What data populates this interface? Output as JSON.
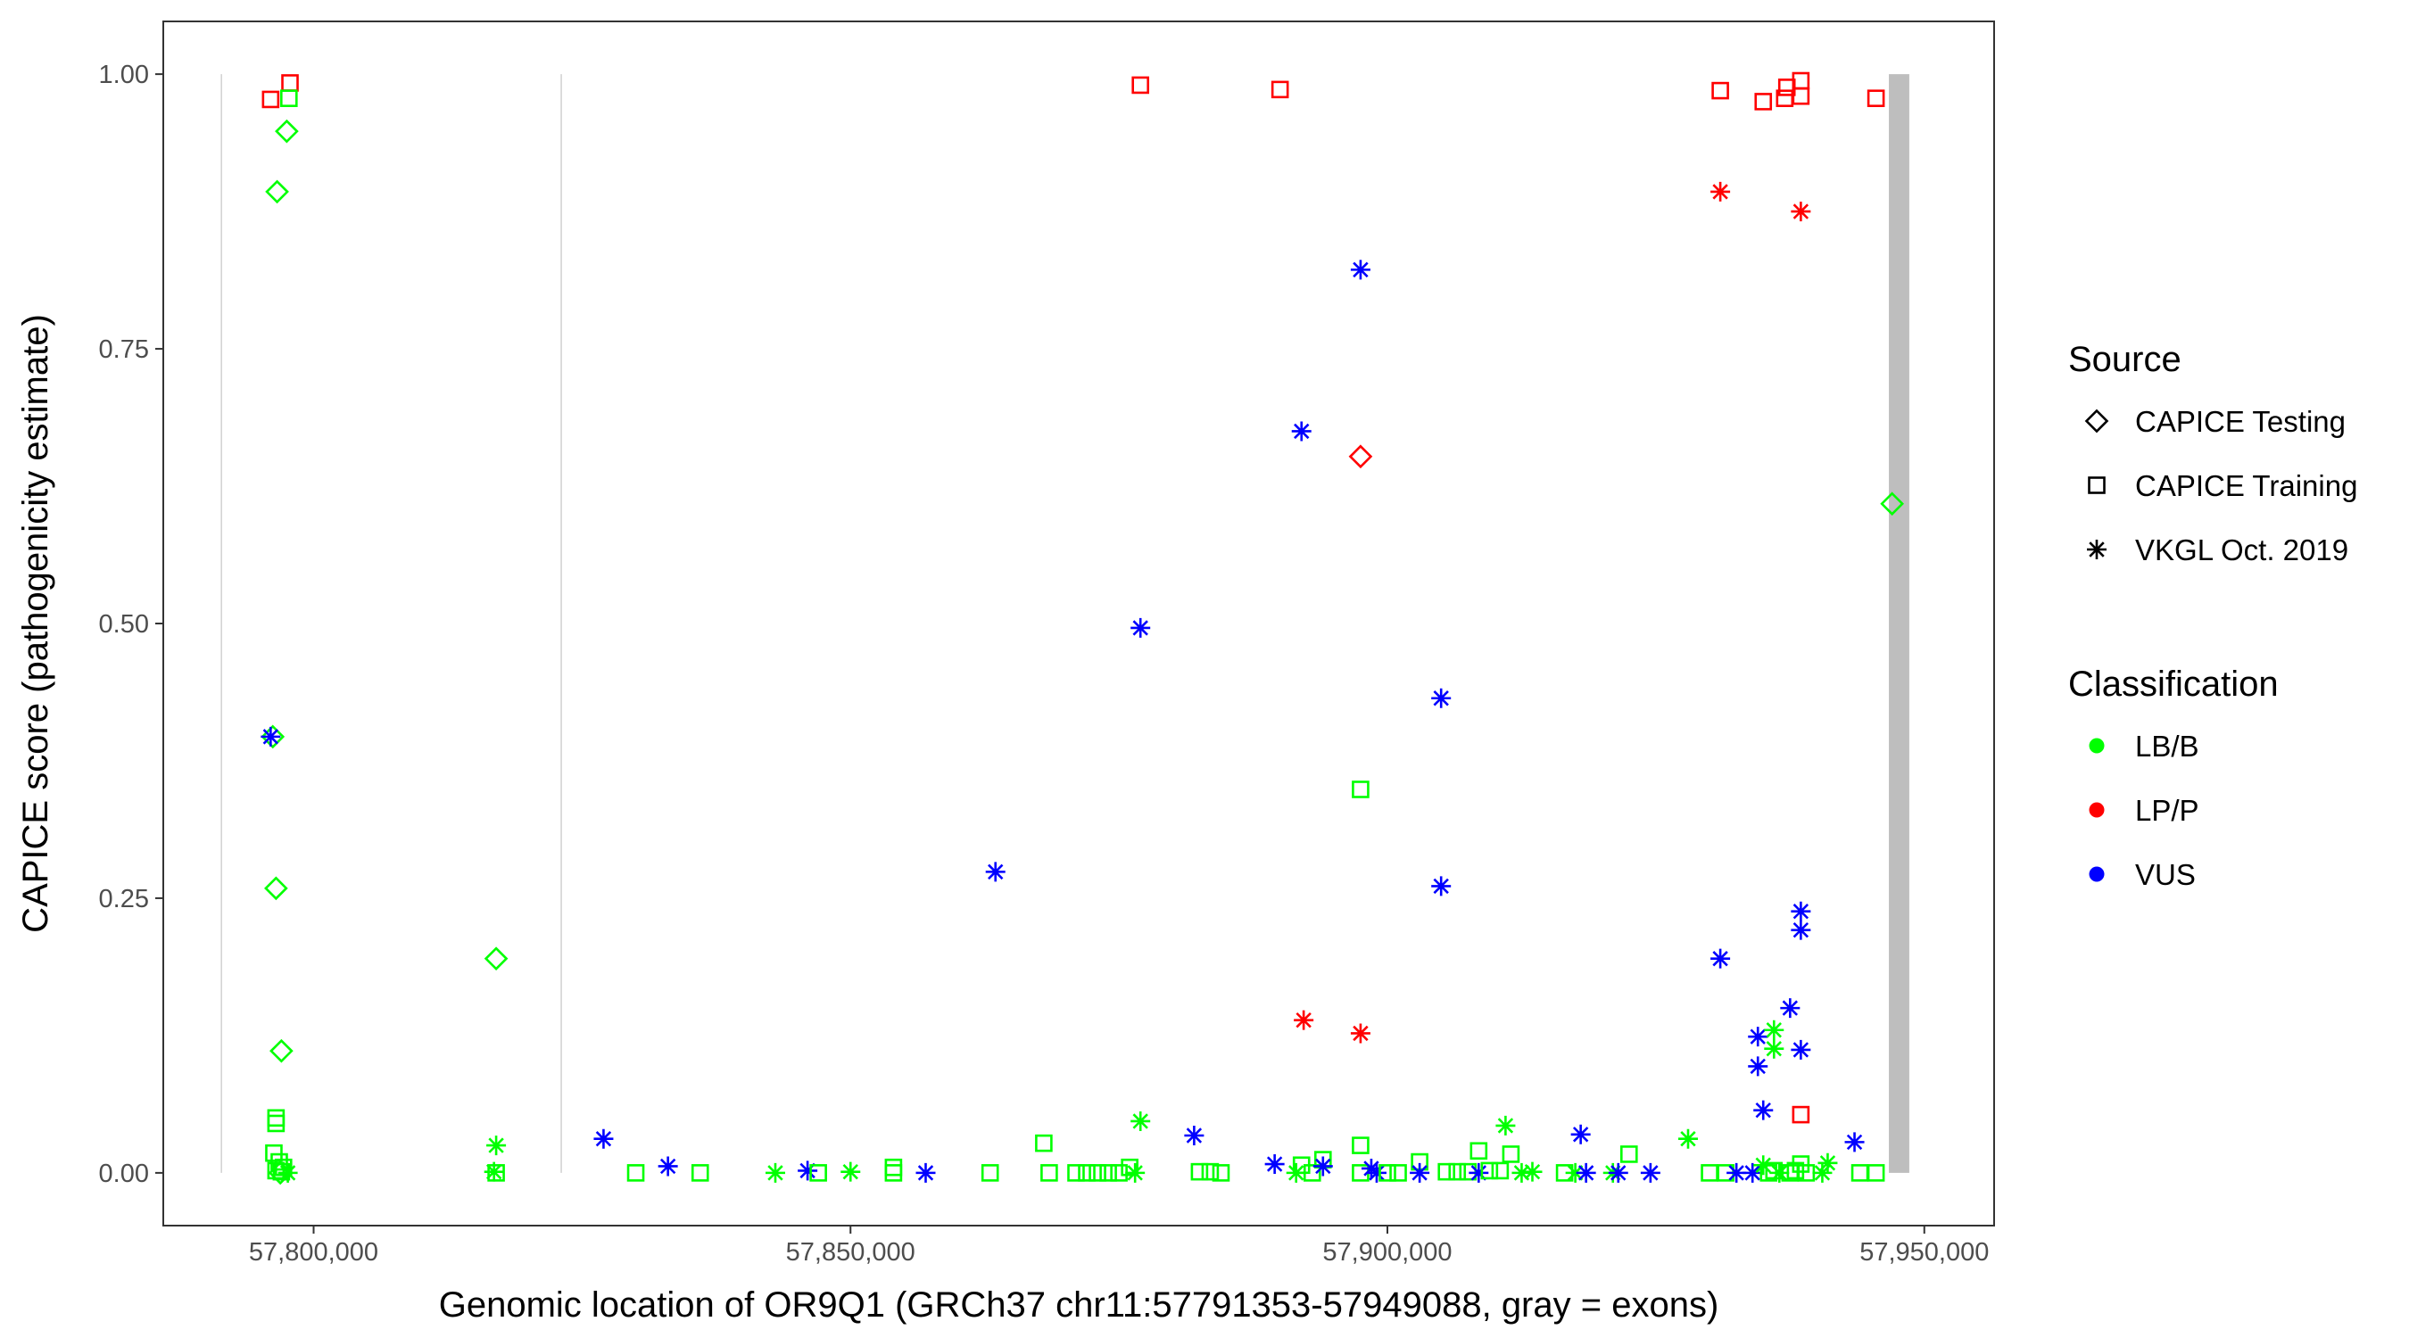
{
  "chart_data": {
    "type": "scatter",
    "title": "",
    "xlabel": "Genomic location of OR9Q1 (GRCh37 chr11:57791353-57949088, gray = exons)",
    "ylabel": "CAPICE score (pathogenicity estimate)",
    "xlim": [
      57786000,
      57956500
    ],
    "ylim": [
      -0.048,
      1.048
    ],
    "x_ticks": [
      57800000,
      57850000,
      57900000,
      57950000
    ],
    "x_tick_labels": [
      "57,800,000",
      "57,850,000",
      "57,900,000",
      "57,950,000"
    ],
    "y_ticks": [
      0,
      0.25,
      0.5,
      0.75,
      1
    ],
    "y_tick_labels": [
      "0.00",
      "0.25",
      "0.50",
      "0.75",
      "1.00"
    ],
    "grid": false,
    "legend_position": "right",
    "exon_regions": [
      [
        57791353,
        57791353
      ],
      [
        57823000,
        57823000
      ],
      [
        57946700,
        57948600
      ]
    ],
    "shape_legend": {
      "title": "Source",
      "entries": [
        {
          "key": "testing",
          "label": "CAPICE Testing",
          "shape": "diamond"
        },
        {
          "key": "training",
          "label": "CAPICE Training",
          "shape": "square"
        },
        {
          "key": "vkgl",
          "label": "VKGL Oct. 2019",
          "shape": "asterisk"
        }
      ]
    },
    "color_legend": {
      "title": "Classification",
      "entries": [
        {
          "key": "LB",
          "label": "LB/B",
          "color": "#00ff00"
        },
        {
          "key": "LP",
          "label": "LP/P",
          "color": "#ff0000"
        },
        {
          "key": "VUS",
          "label": "VUS",
          "color": "#0000ff"
        }
      ]
    },
    "points": [
      {
        "x": 57796000,
        "y": 0.977,
        "src": "training",
        "cls": "LP"
      },
      {
        "x": 57797800,
        "y": 0.992,
        "src": "training",
        "cls": "LP"
      },
      {
        "x": 57797700,
        "y": 0.978,
        "src": "training",
        "cls": "LB"
      },
      {
        "x": 57797500,
        "y": 0.948,
        "src": "testing",
        "cls": "LB"
      },
      {
        "x": 57796600,
        "y": 0.893,
        "src": "testing",
        "cls": "LB"
      },
      {
        "x": 57796200,
        "y": 0.397,
        "src": "testing",
        "cls": "LB"
      },
      {
        "x": 57796000,
        "y": 0.397,
        "src": "vkgl",
        "cls": "VUS"
      },
      {
        "x": 57796500,
        "y": 0.259,
        "src": "testing",
        "cls": "LB"
      },
      {
        "x": 57797000,
        "y": 0.111,
        "src": "testing",
        "cls": "LB"
      },
      {
        "x": 57796500,
        "y": 0.05,
        "src": "training",
        "cls": "LB"
      },
      {
        "x": 57796500,
        "y": 0.045,
        "src": "training",
        "cls": "LB"
      },
      {
        "x": 57796300,
        "y": 0.018,
        "src": "training",
        "cls": "LB"
      },
      {
        "x": 57796800,
        "y": 0.01,
        "src": "training",
        "cls": "LB"
      },
      {
        "x": 57797200,
        "y": 0.005,
        "src": "training",
        "cls": "LB"
      },
      {
        "x": 57796500,
        "y": 0.002,
        "src": "training",
        "cls": "LB"
      },
      {
        "x": 57797000,
        "y": 0.001,
        "src": "training",
        "cls": "LB"
      },
      {
        "x": 57797600,
        "y": 0.0,
        "src": "vkgl",
        "cls": "LB"
      },
      {
        "x": 57796900,
        "y": 0.0,
        "src": "testing",
        "cls": "LB"
      },
      {
        "x": 57817000,
        "y": 0.195,
        "src": "testing",
        "cls": "LB"
      },
      {
        "x": 57817000,
        "y": 0.025,
        "src": "vkgl",
        "cls": "LB"
      },
      {
        "x": 57816800,
        "y": 0.001,
        "src": "vkgl",
        "cls": "LB"
      },
      {
        "x": 57817000,
        "y": 0.0,
        "src": "training",
        "cls": "LB"
      },
      {
        "x": 57827000,
        "y": 0.031,
        "src": "vkgl",
        "cls": "VUS"
      },
      {
        "x": 57830000,
        "y": 0.0,
        "src": "training",
        "cls": "LB"
      },
      {
        "x": 57833000,
        "y": 0.006,
        "src": "vkgl",
        "cls": "VUS"
      },
      {
        "x": 57836000,
        "y": 0.0,
        "src": "training",
        "cls": "LB"
      },
      {
        "x": 57843000,
        "y": 0.0,
        "src": "vkgl",
        "cls": "LB"
      },
      {
        "x": 57846000,
        "y": 0.002,
        "src": "vkgl",
        "cls": "VUS"
      },
      {
        "x": 57847000,
        "y": 0.0,
        "src": "training",
        "cls": "LB"
      },
      {
        "x": 57850000,
        "y": 0.001,
        "src": "vkgl",
        "cls": "LB"
      },
      {
        "x": 57854000,
        "y": 0.005,
        "src": "training",
        "cls": "LB"
      },
      {
        "x": 57854000,
        "y": 0.0,
        "src": "training",
        "cls": "LB"
      },
      {
        "x": 57857000,
        "y": 0.0,
        "src": "vkgl",
        "cls": "VUS"
      },
      {
        "x": 57863000,
        "y": 0.0,
        "src": "training",
        "cls": "LB"
      },
      {
        "x": 57863500,
        "y": 0.274,
        "src": "vkgl",
        "cls": "VUS"
      },
      {
        "x": 57868000,
        "y": 0.027,
        "src": "training",
        "cls": "LB"
      },
      {
        "x": 57868500,
        "y": 0.0,
        "src": "training",
        "cls": "LB"
      },
      {
        "x": 57871000,
        "y": 0.0,
        "src": "training",
        "cls": "LB"
      },
      {
        "x": 57872000,
        "y": 0.0,
        "src": "training",
        "cls": "LB"
      },
      {
        "x": 57873000,
        "y": 0.0,
        "src": "training",
        "cls": "LB"
      },
      {
        "x": 57874000,
        "y": 0.0,
        "src": "training",
        "cls": "LB"
      },
      {
        "x": 57875000,
        "y": 0.0,
        "src": "training",
        "cls": "LB"
      },
      {
        "x": 57876000,
        "y": 0.005,
        "src": "training",
        "cls": "LB"
      },
      {
        "x": 57876500,
        "y": 0.0,
        "src": "vkgl",
        "cls": "LB"
      },
      {
        "x": 57877000,
        "y": 0.047,
        "src": "vkgl",
        "cls": "LB"
      },
      {
        "x": 57877000,
        "y": 0.496,
        "src": "vkgl",
        "cls": "VUS"
      },
      {
        "x": 57877000,
        "y": 0.99,
        "src": "training",
        "cls": "LP"
      },
      {
        "x": 57882000,
        "y": 0.034,
        "src": "vkgl",
        "cls": "VUS"
      },
      {
        "x": 57882500,
        "y": 0.001,
        "src": "training",
        "cls": "LB"
      },
      {
        "x": 57883500,
        "y": 0.001,
        "src": "training",
        "cls": "LB"
      },
      {
        "x": 57884500,
        "y": 0.0,
        "src": "training",
        "cls": "LB"
      },
      {
        "x": 57890000,
        "y": 0.986,
        "src": "training",
        "cls": "LP"
      },
      {
        "x": 57889500,
        "y": 0.008,
        "src": "vkgl",
        "cls": "VUS"
      },
      {
        "x": 57891500,
        "y": 0.0,
        "src": "vkgl",
        "cls": "LB"
      },
      {
        "x": 57892000,
        "y": 0.007,
        "src": "training",
        "cls": "LB"
      },
      {
        "x": 57892000,
        "y": 0.675,
        "src": "vkgl",
        "cls": "VUS"
      },
      {
        "x": 57892200,
        "y": 0.139,
        "src": "vkgl",
        "cls": "LP"
      },
      {
        "x": 57893000,
        "y": 0.0,
        "src": "training",
        "cls": "LB"
      },
      {
        "x": 57894000,
        "y": 0.012,
        "src": "training",
        "cls": "LB"
      },
      {
        "x": 57894000,
        "y": 0.006,
        "src": "vkgl",
        "cls": "VUS"
      },
      {
        "x": 57897500,
        "y": 0.822,
        "src": "vkgl",
        "cls": "VUS"
      },
      {
        "x": 57897500,
        "y": 0.652,
        "src": "testing",
        "cls": "LP"
      },
      {
        "x": 57897500,
        "y": 0.349,
        "src": "training",
        "cls": "LB"
      },
      {
        "x": 57897500,
        "y": 0.127,
        "src": "vkgl",
        "cls": "LP"
      },
      {
        "x": 57897500,
        "y": 0.025,
        "src": "training",
        "cls": "LB"
      },
      {
        "x": 57897500,
        "y": 0.0,
        "src": "training",
        "cls": "LB"
      },
      {
        "x": 57898500,
        "y": 0.004,
        "src": "vkgl",
        "cls": "VUS"
      },
      {
        "x": 57899000,
        "y": 0.0,
        "src": "vkgl",
        "cls": "VUS"
      },
      {
        "x": 57900000,
        "y": 0.0,
        "src": "training",
        "cls": "LB"
      },
      {
        "x": 57901000,
        "y": 0.0,
        "src": "training",
        "cls": "LB"
      },
      {
        "x": 57903000,
        "y": 0.01,
        "src": "training",
        "cls": "LB"
      },
      {
        "x": 57903000,
        "y": 0.0,
        "src": "vkgl",
        "cls": "VUS"
      },
      {
        "x": 57905000,
        "y": 0.432,
        "src": "vkgl",
        "cls": "VUS"
      },
      {
        "x": 57905000,
        "y": 0.261,
        "src": "vkgl",
        "cls": "VUS"
      },
      {
        "x": 57905500,
        "y": 0.001,
        "src": "training",
        "cls": "LB"
      },
      {
        "x": 57906500,
        "y": 0.001,
        "src": "training",
        "cls": "LB"
      },
      {
        "x": 57907500,
        "y": 0.001,
        "src": "training",
        "cls": "LB"
      },
      {
        "x": 57908500,
        "y": 0.02,
        "src": "training",
        "cls": "LB"
      },
      {
        "x": 57908500,
        "y": 0.0,
        "src": "vkgl",
        "cls": "VUS"
      },
      {
        "x": 57909500,
        "y": 0.002,
        "src": "training",
        "cls": "LB"
      },
      {
        "x": 57910500,
        "y": 0.002,
        "src": "training",
        "cls": "LB"
      },
      {
        "x": 57911000,
        "y": 0.043,
        "src": "vkgl",
        "cls": "LB"
      },
      {
        "x": 57911500,
        "y": 0.017,
        "src": "training",
        "cls": "LB"
      },
      {
        "x": 57912500,
        "y": 0.0,
        "src": "vkgl",
        "cls": "LB"
      },
      {
        "x": 57913500,
        "y": 0.001,
        "src": "vkgl",
        "cls": "LB"
      },
      {
        "x": 57916500,
        "y": 0.0,
        "src": "training",
        "cls": "LB"
      },
      {
        "x": 57917500,
        "y": 0.0,
        "src": "vkgl",
        "cls": "LB"
      },
      {
        "x": 57918000,
        "y": 0.035,
        "src": "vkgl",
        "cls": "VUS"
      },
      {
        "x": 57918500,
        "y": 0.0,
        "src": "vkgl",
        "cls": "VUS"
      },
      {
        "x": 57921000,
        "y": 0.0,
        "src": "vkgl",
        "cls": "LB"
      },
      {
        "x": 57921500,
        "y": 0.0,
        "src": "vkgl",
        "cls": "VUS"
      },
      {
        "x": 57922500,
        "y": 0.017,
        "src": "training",
        "cls": "LB"
      },
      {
        "x": 57924500,
        "y": 0.0,
        "src": "vkgl",
        "cls": "VUS"
      },
      {
        "x": 57928000,
        "y": 0.031,
        "src": "vkgl",
        "cls": "LB"
      },
      {
        "x": 57930000,
        "y": 0.0,
        "src": "training",
        "cls": "LB"
      },
      {
        "x": 57931000,
        "y": 0.985,
        "src": "training",
        "cls": "LP"
      },
      {
        "x": 57931000,
        "y": 0.893,
        "src": "vkgl",
        "cls": "LP"
      },
      {
        "x": 57931000,
        "y": 0.195,
        "src": "vkgl",
        "cls": "VUS"
      },
      {
        "x": 57931500,
        "y": 0.0,
        "src": "training",
        "cls": "LB"
      },
      {
        "x": 57932500,
        "y": 0.0,
        "src": "vkgl",
        "cls": "VUS"
      },
      {
        "x": 57934000,
        "y": 0.0,
        "src": "vkgl",
        "cls": "VUS"
      },
      {
        "x": 57934500,
        "y": 0.124,
        "src": "vkgl",
        "cls": "VUS"
      },
      {
        "x": 57934500,
        "y": 0.097,
        "src": "vkgl",
        "cls": "VUS"
      },
      {
        "x": 57935000,
        "y": 0.975,
        "src": "training",
        "cls": "LP"
      },
      {
        "x": 57935000,
        "y": 0.057,
        "src": "vkgl",
        "cls": "VUS"
      },
      {
        "x": 57935000,
        "y": 0.007,
        "src": "vkgl",
        "cls": "LB"
      },
      {
        "x": 57935500,
        "y": 0.0,
        "src": "training",
        "cls": "LB"
      },
      {
        "x": 57936000,
        "y": 0.13,
        "src": "vkgl",
        "cls": "LB"
      },
      {
        "x": 57936000,
        "y": 0.113,
        "src": "vkgl",
        "cls": "LB"
      },
      {
        "x": 57936000,
        "y": 0.002,
        "src": "training",
        "cls": "LB"
      },
      {
        "x": 57936500,
        "y": 0.0,
        "src": "vkgl",
        "cls": "LB"
      },
      {
        "x": 57937000,
        "y": 0.978,
        "src": "training",
        "cls": "LP"
      },
      {
        "x": 57937200,
        "y": 0.988,
        "src": "training",
        "cls": "LP"
      },
      {
        "x": 57937500,
        "y": 0.15,
        "src": "vkgl",
        "cls": "VUS"
      },
      {
        "x": 57937500,
        "y": 0.0,
        "src": "training",
        "cls": "LB"
      },
      {
        "x": 57938000,
        "y": 0.002,
        "src": "training",
        "cls": "LB"
      },
      {
        "x": 57938500,
        "y": 0.994,
        "src": "training",
        "cls": "LP"
      },
      {
        "x": 57938500,
        "y": 0.98,
        "src": "training",
        "cls": "LP"
      },
      {
        "x": 57938500,
        "y": 0.875,
        "src": "vkgl",
        "cls": "LP"
      },
      {
        "x": 57938500,
        "y": 0.238,
        "src": "vkgl",
        "cls": "VUS"
      },
      {
        "x": 57938500,
        "y": 0.221,
        "src": "vkgl",
        "cls": "VUS"
      },
      {
        "x": 57938500,
        "y": 0.112,
        "src": "vkgl",
        "cls": "VUS"
      },
      {
        "x": 57938500,
        "y": 0.053,
        "src": "training",
        "cls": "LP"
      },
      {
        "x": 57938500,
        "y": 0.008,
        "src": "training",
        "cls": "LB"
      },
      {
        "x": 57939000,
        "y": 0.0,
        "src": "training",
        "cls": "LB"
      },
      {
        "x": 57940500,
        "y": 0.0,
        "src": "vkgl",
        "cls": "LB"
      },
      {
        "x": 57941000,
        "y": 0.009,
        "src": "vkgl",
        "cls": "LB"
      },
      {
        "x": 57943500,
        "y": 0.028,
        "src": "vkgl",
        "cls": "VUS"
      },
      {
        "x": 57944000,
        "y": 0.0,
        "src": "training",
        "cls": "LB"
      },
      {
        "x": 57945500,
        "y": 0.978,
        "src": "training",
        "cls": "LP"
      },
      {
        "x": 57945500,
        "y": 0.0,
        "src": "training",
        "cls": "LB"
      },
      {
        "x": 57947000,
        "y": 0.609,
        "src": "testing",
        "cls": "LB"
      }
    ]
  }
}
